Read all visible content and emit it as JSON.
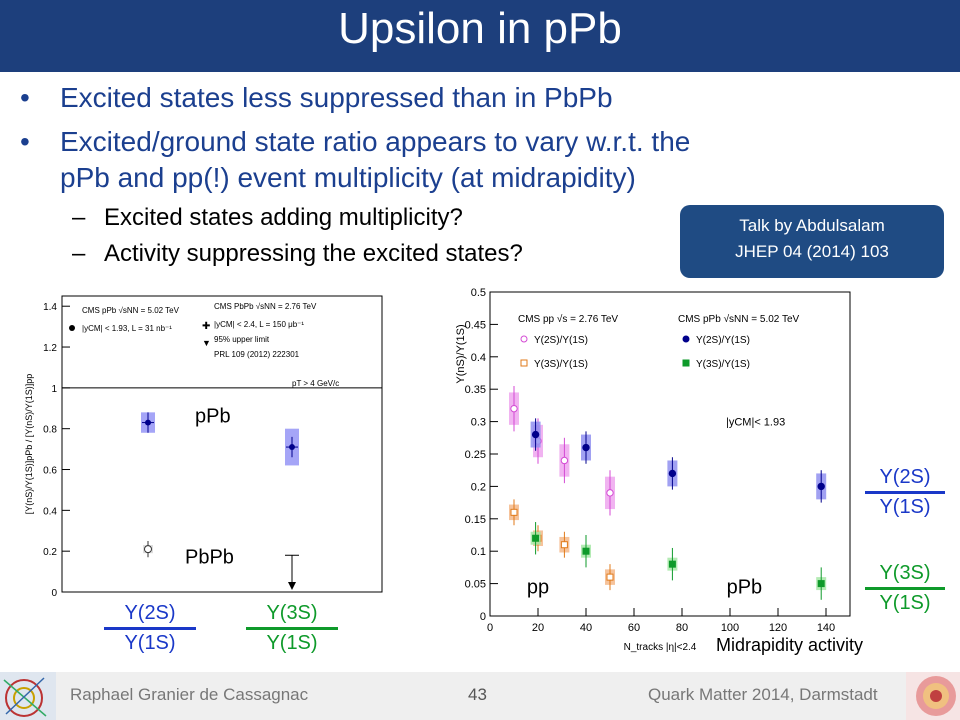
{
  "slide": {
    "title": "Upsilon in pPb",
    "bullets": [
      "Excited states less suppressed than in PbPb",
      "Excited/ground state ratio appears to vary w.r.t. the",
      "pPb and pp(!) event multiplicity (at midrapidity)"
    ],
    "subbullets": [
      "Excited states adding multiplicity?",
      "Activity suppressing the excited states?"
    ],
    "talk_box": {
      "line1": "Talk by Abdulsalam",
      "line2": "JHEP 04 (2014) 103"
    },
    "ratio_labels": {
      "left_a_num": "Y(2S)",
      "left_a_den": "Y(1S)",
      "left_b_num": "Y(3S)",
      "left_b_den": "Y(1S)",
      "right_a_num": "Y(2S)",
      "right_a_den": "Y(1S)",
      "right_b_num": "Y(3S)",
      "right_b_den": "Y(1S)"
    },
    "midrapidity_label": "Midrapidity activity",
    "footer": {
      "author": "Raphael Granier de Cassagnac",
      "page": "43",
      "conference": "Quark Matter 2014, Darmstadt"
    },
    "colors": {
      "title_bg": "#1d3f7c",
      "bullet_text": "#1b3f8f",
      "blue": "#1a38c8",
      "green": "#0e9a2a"
    }
  },
  "chart_data": [
    {
      "type": "scatter",
      "ylabel": "[Υ(nS)/Υ(1S)]pPb / [Υ(nS)/Υ(1S)]pp",
      "ylim": [
        0,
        1.45
      ],
      "yticks": [
        "0",
        "0.2",
        "0.4",
        "0.6",
        "0.8",
        "1",
        "1.2",
        "1.4"
      ],
      "legend": [
        "CMS pPb √sNN = 5.02 TeV",
        "|yCM| < 1.93, L = 31 nb⁻¹",
        "CMS PbPb √sNN = 2.76 TeV",
        "|yCM| < 2.4, L = 150 μb⁻¹",
        "95% upper limit",
        "PRL 109 (2012) 222301"
      ],
      "cut": "pT > 4 GeV/c",
      "annotations": [
        "pPb",
        "PbPb"
      ],
      "series": [
        {
          "name": "pPb",
          "points": [
            {
              "x": "Y(2S)/Y(1S)",
              "y": 0.83
            },
            {
              "x": "Y(3S)/Y(1S)",
              "y": 0.71
            }
          ]
        },
        {
          "name": "PbPb",
          "points": [
            {
              "x": "Y(2S)/Y(1S)",
              "y": 0.21
            }
          ],
          "upper_limit": [
            {
              "x": "Y(3S)/Y(1S)",
              "y": 0.18
            }
          ]
        }
      ]
    },
    {
      "type": "scatter",
      "ylabel": "Υ(nS)/Υ(1S)",
      "xlabel": "N_tracks |η|<2.4",
      "xlim": [
        0,
        150
      ],
      "ylim": [
        0,
        0.5
      ],
      "xticks": [
        "0",
        "20",
        "40",
        "60",
        "80",
        "100",
        "120",
        "140"
      ],
      "yticks": [
        "0",
        "0.05",
        "0.1",
        "0.15",
        "0.2",
        "0.25",
        "0.3",
        "0.35",
        "0.4",
        "0.45",
        "0.5"
      ],
      "legend_headers": [
        "CMS pp √s = 2.76 TeV",
        "CMS pPb √sNN = 5.02 TeV"
      ],
      "cut": "|yCM|< 1.93",
      "annotations": [
        "pp",
        "pPb"
      ],
      "series": [
        {
          "name": "Υ(2S)/Υ(1S)",
          "system": "pp",
          "x": [
            10,
            20,
            31,
            50
          ],
          "y": [
            0.32,
            0.27,
            0.24,
            0.19
          ]
        },
        {
          "name": "Υ(3S)/Υ(1S)",
          "system": "pp",
          "x": [
            10,
            20,
            31,
            50
          ],
          "y": [
            0.16,
            0.12,
            0.11,
            0.06
          ]
        },
        {
          "name": "Υ(2S)/Υ(1S)",
          "system": "pPb",
          "x": [
            19,
            40,
            76,
            138
          ],
          "y": [
            0.28,
            0.26,
            0.22,
            0.2
          ]
        },
        {
          "name": "Υ(3S)/Υ(1S)",
          "system": "pPb",
          "x": [
            19,
            40,
            76,
            138
          ],
          "y": [
            0.12,
            0.1,
            0.08,
            0.05
          ]
        }
      ]
    }
  ]
}
